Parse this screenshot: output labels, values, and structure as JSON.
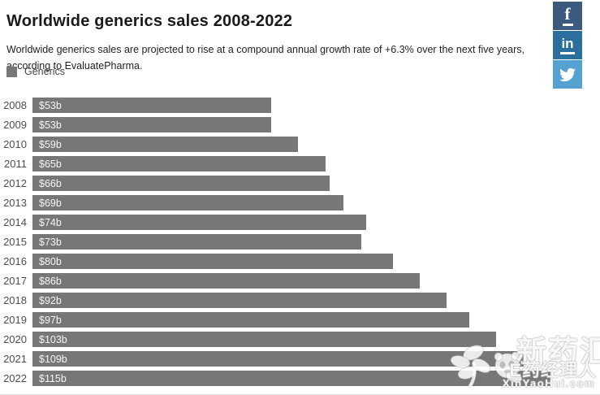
{
  "header": {
    "title": "Worldwide generics sales 2008-2022",
    "subtitle": "Worldwide generics sales are projected to rise at a compound annual growth rate of +6.3% over the next five years, according to EvaluatePharma."
  },
  "social": {
    "facebook_glyph": "f",
    "linkedin_glyph": "in",
    "buttons": [
      "facebook-share",
      "linkedin-share",
      "twitter-share"
    ]
  },
  "legend": {
    "label": "Generics",
    "swatch_color": "#777777"
  },
  "chart_data": {
    "type": "bar",
    "orientation": "horizontal",
    "title": "Worldwide generics sales 2008-2022",
    "series_name": "Generics",
    "categories": [
      "2008",
      "2009",
      "2010",
      "2011",
      "2012",
      "2013",
      "2014",
      "2015",
      "2016",
      "2017",
      "2018",
      "2019",
      "2020",
      "2021",
      "2022"
    ],
    "values": [
      53,
      53,
      59,
      65,
      66,
      69,
      74,
      73,
      80,
      86,
      92,
      97,
      103,
      109,
      115
    ],
    "value_labels": [
      "$53b",
      "$53b",
      "$59b",
      "$65b",
      "$66b",
      "$69b",
      "$74b",
      "$73b",
      "$80b",
      "$86b",
      "$92b",
      "$97b",
      "$103b",
      "$109b",
      "$115b"
    ],
    "unit": "USD billions",
    "xlim": [
      0,
      115
    ],
    "grid": false,
    "bar_color": "#777777",
    "value_label_position": "inside-start",
    "legend_position": "top-left"
  },
  "watermark": {
    "big_text": "新药汇",
    "mid_text": "E药经理人",
    "small_text": "XinYaoHui.com"
  },
  "colors": {
    "facebook": "#3b5a7e",
    "linkedin": "#2a6f9e",
    "twitter": "#55a1d1",
    "bar": "#777777",
    "title_text": "#1a1a1a",
    "subtitle_text": "#222222",
    "year_label": "#4d4d4d",
    "bar_value_label": "#f6f6f6"
  }
}
